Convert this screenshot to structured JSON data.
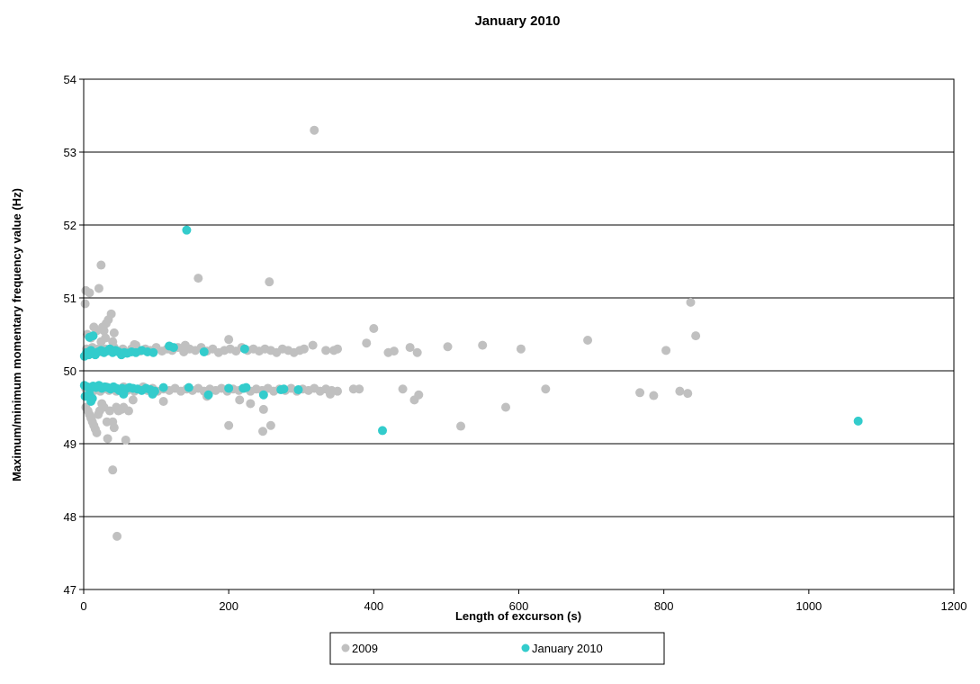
{
  "chart_data": {
    "type": "scatter",
    "title": "January 2010",
    "xlabel": "Length of excurson (s)",
    "ylabel": "Maximum/minimum momentary frequency value (Hz)",
    "xlim": [
      0,
      1200
    ],
    "ylim": [
      47,
      54
    ],
    "x_ticks": [
      0,
      200,
      400,
      600,
      800,
      1000,
      1200
    ],
    "y_ticks": [
      47,
      48,
      49,
      50,
      51,
      52,
      53,
      54
    ],
    "grid": "horizontal",
    "legend_position": "bottom",
    "series": [
      {
        "name": "2009",
        "color": "#c0c0c0",
        "points": [
          [
            2,
            50.92
          ],
          [
            3,
            51.1
          ],
          [
            8,
            51.07
          ],
          [
            5,
            50.5
          ],
          [
            10,
            50.45
          ],
          [
            14,
            50.6
          ],
          [
            18,
            50.55
          ],
          [
            21,
            51.13
          ],
          [
            24,
            51.45
          ],
          [
            26,
            50.6
          ],
          [
            28,
            50.55
          ],
          [
            31,
            50.65
          ],
          [
            34,
            50.7
          ],
          [
            38,
            50.78
          ],
          [
            42,
            50.52
          ],
          [
            24,
            50.4
          ],
          [
            30,
            50.45
          ],
          [
            40,
            50.4
          ],
          [
            4,
            50.3
          ],
          [
            6,
            50.25
          ],
          [
            9,
            50.28
          ],
          [
            12,
            50.32
          ],
          [
            16,
            50.27
          ],
          [
            20,
            50.3
          ],
          [
            25,
            50.26
          ],
          [
            30,
            50.3
          ],
          [
            36,
            50.28
          ],
          [
            42,
            50.32
          ],
          [
            48,
            50.27
          ],
          [
            54,
            50.3
          ],
          [
            60,
            50.25
          ],
          [
            66,
            50.3
          ],
          [
            72,
            50.35
          ],
          [
            78,
            50.27
          ],
          [
            85,
            50.3
          ],
          [
            92,
            50.28
          ],
          [
            100,
            50.32
          ],
          [
            108,
            50.27
          ],
          [
            115,
            50.3
          ],
          [
            122,
            50.28
          ],
          [
            130,
            50.32
          ],
          [
            138,
            50.26
          ],
          [
            146,
            50.3
          ],
          [
            154,
            50.28
          ],
          [
            162,
            50.32
          ],
          [
            170,
            50.27
          ],
          [
            178,
            50.3
          ],
          [
            186,
            50.25
          ],
          [
            194,
            50.28
          ],
          [
            202,
            50.3
          ],
          [
            210,
            50.27
          ],
          [
            218,
            50.32
          ],
          [
            226,
            50.28
          ],
          [
            234,
            50.3
          ],
          [
            242,
            50.27
          ],
          [
            250,
            50.3
          ],
          [
            258,
            50.28
          ],
          [
            266,
            50.25
          ],
          [
            274,
            50.3
          ],
          [
            282,
            50.28
          ],
          [
            290,
            50.25
          ],
          [
            298,
            50.28
          ],
          [
            304,
            50.3
          ],
          [
            200,
            50.43
          ],
          [
            70,
            50.36
          ],
          [
            140,
            50.35
          ],
          [
            3,
            49.75
          ],
          [
            7,
            49.72
          ],
          [
            11,
            49.78
          ],
          [
            15,
            49.73
          ],
          [
            19,
            49.76
          ],
          [
            23,
            49.72
          ],
          [
            27,
            49.75
          ],
          [
            31,
            49.78
          ],
          [
            35,
            49.73
          ],
          [
            40,
            49.76
          ],
          [
            45,
            49.72
          ],
          [
            50,
            49.75
          ],
          [
            55,
            49.78
          ],
          [
            60,
            49.73
          ],
          [
            65,
            49.76
          ],
          [
            70,
            49.72
          ],
          [
            76,
            49.75
          ],
          [
            82,
            49.78
          ],
          [
            88,
            49.73
          ],
          [
            95,
            49.76
          ],
          [
            102,
            49.72
          ],
          [
            110,
            49.75
          ],
          [
            118,
            49.73
          ],
          [
            126,
            49.76
          ],
          [
            134,
            49.72
          ],
          [
            142,
            49.75
          ],
          [
            150,
            49.73
          ],
          [
            158,
            49.76
          ],
          [
            166,
            49.72
          ],
          [
            174,
            49.75
          ],
          [
            182,
            49.73
          ],
          [
            190,
            49.76
          ],
          [
            198,
            49.72
          ],
          [
            206,
            49.75
          ],
          [
            214,
            49.73
          ],
          [
            222,
            49.76
          ],
          [
            230,
            49.72
          ],
          [
            238,
            49.75
          ],
          [
            246,
            49.73
          ],
          [
            254,
            49.76
          ],
          [
            262,
            49.72
          ],
          [
            270,
            49.75
          ],
          [
            278,
            49.73
          ],
          [
            286,
            49.76
          ],
          [
            294,
            49.72
          ],
          [
            302,
            49.75
          ],
          [
            310,
            49.73
          ],
          [
            318,
            49.76
          ],
          [
            326,
            49.72
          ],
          [
            334,
            49.75
          ],
          [
            342,
            49.73
          ],
          [
            3,
            49.5
          ],
          [
            6,
            49.45
          ],
          [
            8,
            49.4
          ],
          [
            10,
            49.35
          ],
          [
            12,
            49.3
          ],
          [
            14,
            49.25
          ],
          [
            16,
            49.2
          ],
          [
            18,
            49.15
          ],
          [
            20,
            49.4
          ],
          [
            22,
            49.45
          ],
          [
            25,
            49.55
          ],
          [
            28,
            49.5
          ],
          [
            32,
            49.3
          ],
          [
            33,
            49.07
          ],
          [
            36,
            49.45
          ],
          [
            40,
            49.3
          ],
          [
            42,
            49.22
          ],
          [
            45,
            49.5
          ],
          [
            48,
            49.45
          ],
          [
            52,
            49.47
          ],
          [
            55,
            49.5
          ],
          [
            58,
            49.05
          ],
          [
            62,
            49.45
          ],
          [
            68,
            49.6
          ],
          [
            40,
            48.64
          ],
          [
            46,
            47.73
          ],
          [
            110,
            49.58
          ],
          [
            170,
            49.65
          ],
          [
            200,
            49.25
          ],
          [
            215,
            49.6
          ],
          [
            230,
            49.55
          ],
          [
            248,
            49.47
          ],
          [
            247,
            49.17
          ],
          [
            258,
            49.25
          ],
          [
            318,
            53.3
          ],
          [
            158,
            51.27
          ],
          [
            256,
            51.22
          ],
          [
            334,
            50.28
          ],
          [
            316,
            50.35
          ],
          [
            345,
            50.28
          ],
          [
            350,
            50.3
          ],
          [
            390,
            50.38
          ],
          [
            400,
            50.58
          ],
          [
            420,
            50.25
          ],
          [
            428,
            50.27
          ],
          [
            450,
            50.32
          ],
          [
            460,
            50.25
          ],
          [
            502,
            50.33
          ],
          [
            550,
            50.35
          ],
          [
            603,
            50.3
          ],
          [
            695,
            50.42
          ],
          [
            803,
            50.28
          ],
          [
            837,
            50.94
          ],
          [
            844,
            50.48
          ],
          [
            340,
            49.68
          ],
          [
            350,
            49.72
          ],
          [
            372,
            49.75
          ],
          [
            380,
            49.75
          ],
          [
            440,
            49.75
          ],
          [
            456,
            49.6
          ],
          [
            462,
            49.67
          ],
          [
            520,
            49.24
          ],
          [
            582,
            49.5
          ],
          [
            637,
            49.75
          ],
          [
            767,
            49.7
          ],
          [
            786,
            49.66
          ],
          [
            822,
            49.72
          ],
          [
            833,
            49.69
          ]
        ]
      },
      {
        "name": "January 2010",
        "color": "#33cccc",
        "points": [
          [
            1,
            50.2
          ],
          [
            4,
            50.25
          ],
          [
            7,
            50.22
          ],
          [
            10,
            50.28
          ],
          [
            13,
            50.25
          ],
          [
            16,
            50.22
          ],
          [
            20,
            50.26
          ],
          [
            24,
            50.28
          ],
          [
            28,
            50.25
          ],
          [
            32,
            50.27
          ],
          [
            36,
            50.3
          ],
          [
            40,
            50.25
          ],
          [
            44,
            50.28
          ],
          [
            48,
            50.26
          ],
          [
            52,
            50.22
          ],
          [
            56,
            50.25
          ],
          [
            60,
            50.24
          ],
          [
            66,
            50.26
          ],
          [
            72,
            50.25
          ],
          [
            80,
            50.28
          ],
          [
            88,
            50.26
          ],
          [
            96,
            50.25
          ],
          [
            118,
            50.34
          ],
          [
            124,
            50.32
          ],
          [
            166,
            50.26
          ],
          [
            222,
            50.3
          ],
          [
            8,
            50.46
          ],
          [
            13,
            50.48
          ],
          [
            142,
            51.93
          ],
          [
            1,
            49.8
          ],
          [
            5,
            49.78
          ],
          [
            9,
            49.76
          ],
          [
            13,
            49.79
          ],
          [
            17,
            49.77
          ],
          [
            21,
            49.8
          ],
          [
            25,
            49.76
          ],
          [
            29,
            49.78
          ],
          [
            33,
            49.77
          ],
          [
            37,
            49.75
          ],
          [
            41,
            49.78
          ],
          [
            45,
            49.76
          ],
          [
            49,
            49.73
          ],
          [
            53,
            49.76
          ],
          [
            58,
            49.75
          ],
          [
            63,
            49.77
          ],
          [
            68,
            49.76
          ],
          [
            74,
            49.75
          ],
          [
            80,
            49.73
          ],
          [
            86,
            49.76
          ],
          [
            92,
            49.74
          ],
          [
            98,
            49.72
          ],
          [
            110,
            49.77
          ],
          [
            145,
            49.77
          ],
          [
            200,
            49.76
          ],
          [
            220,
            49.76
          ],
          [
            224,
            49.77
          ],
          [
            272,
            49.74
          ],
          [
            276,
            49.75
          ],
          [
            296,
            49.74
          ],
          [
            2,
            49.65
          ],
          [
            8,
            49.68
          ],
          [
            10,
            49.58
          ],
          [
            12,
            49.62
          ],
          [
            55,
            49.68
          ],
          [
            95,
            49.68
          ],
          [
            172,
            49.67
          ],
          [
            248,
            49.67
          ],
          [
            412,
            49.18
          ],
          [
            1068,
            49.31
          ]
        ]
      }
    ]
  }
}
